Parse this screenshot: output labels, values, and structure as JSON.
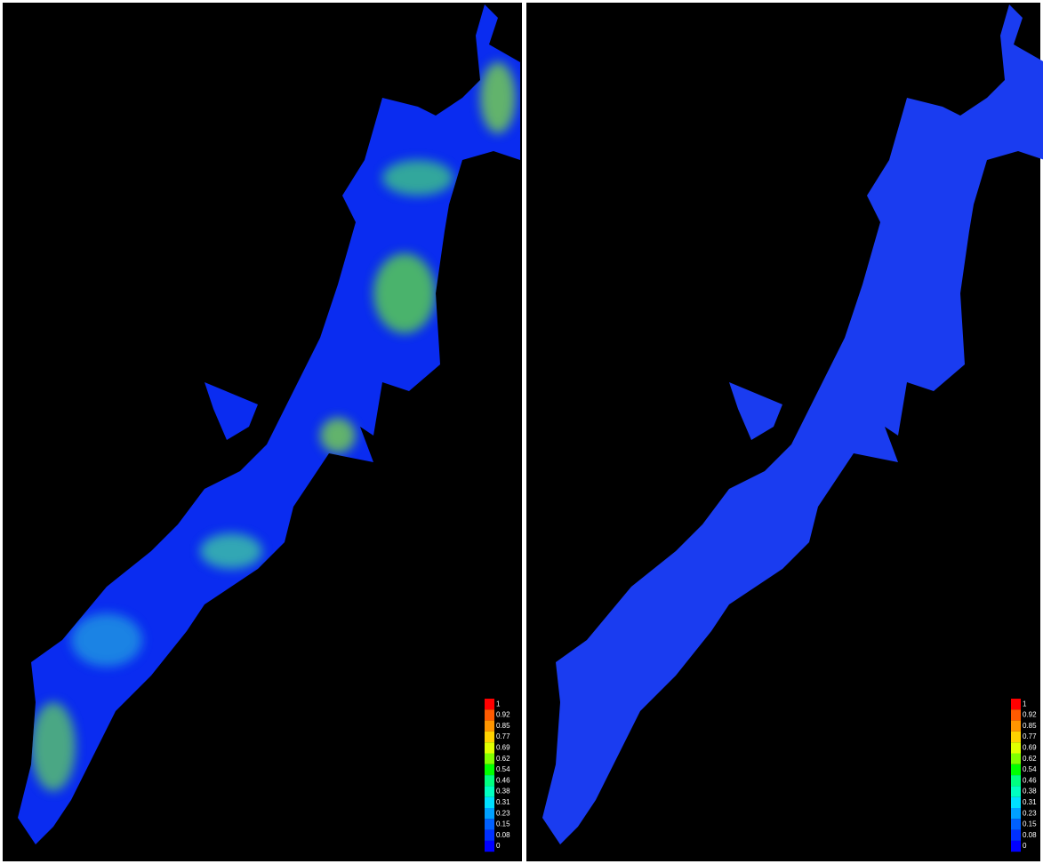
{
  "panels": [
    {
      "legend": {
        "labels": [
          "1",
          "0.92",
          "0.85",
          "0.77",
          "0.69",
          "0.62",
          "0.54",
          "0.46",
          "0.38",
          "0.31",
          "0.23",
          "0.15",
          "0.08",
          "0"
        ],
        "colors": [
          "#ff0000",
          "#ff5a00",
          "#ff9600",
          "#ffd200",
          "#e0ff00",
          "#80ff00",
          "#00ff00",
          "#00ff80",
          "#00ffc0",
          "#00e0ff",
          "#00a0ff",
          "#0060ff",
          "#0030ff",
          "#0000ff"
        ]
      }
    },
    {
      "legend": {
        "labels": [
          "1",
          "0.92",
          "0.85",
          "0.77",
          "0.69",
          "0.62",
          "0.54",
          "0.46",
          "0.38",
          "0.31",
          "0.23",
          "0.15",
          "0.08",
          "0"
        ],
        "colors": [
          "#ff0000",
          "#ff5a00",
          "#ff9600",
          "#ffd200",
          "#e0ff00",
          "#80ff00",
          "#00ff00",
          "#00ff80",
          "#00ffc0",
          "#00e0ff",
          "#00a0ff",
          "#0060ff",
          "#0030ff",
          "#0000ff"
        ]
      }
    }
  ]
}
